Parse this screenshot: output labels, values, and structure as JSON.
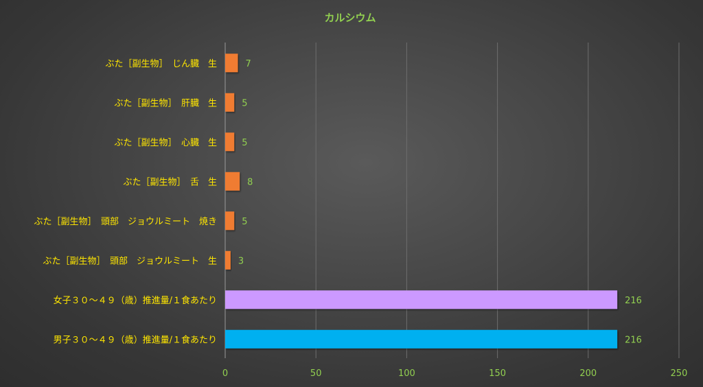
{
  "chart_data": {
    "type": "bar",
    "orientation": "horizontal",
    "title": "カルシウム",
    "categories": [
      "ぶた［副生物］　じん臓　生",
      "ぶた［副生物］　肝臓　生",
      "ぶた［副生物］　心臓　生",
      "ぶた［副生物］　舌　生",
      "ぶた［副生物］　頭部　ジョウルミート　焼き",
      "ぶた［副生物］　頭部　ジョウルミート　生",
      "女子３０～４９（歳）推進量/１食あたり",
      "男子３０～４９（歳）推進量/１食あたり"
    ],
    "values": [
      7,
      5,
      5,
      8,
      5,
      3,
      216,
      216
    ],
    "colors": [
      "#f07c30",
      "#f07c30",
      "#f07c30",
      "#f07c30",
      "#f07c30",
      "#f07c30",
      "#cc99ff",
      "#00b0f0"
    ],
    "xlim": [
      0,
      250
    ],
    "xticks": [
      0,
      50,
      100,
      150,
      200,
      250
    ],
    "grid": true
  }
}
